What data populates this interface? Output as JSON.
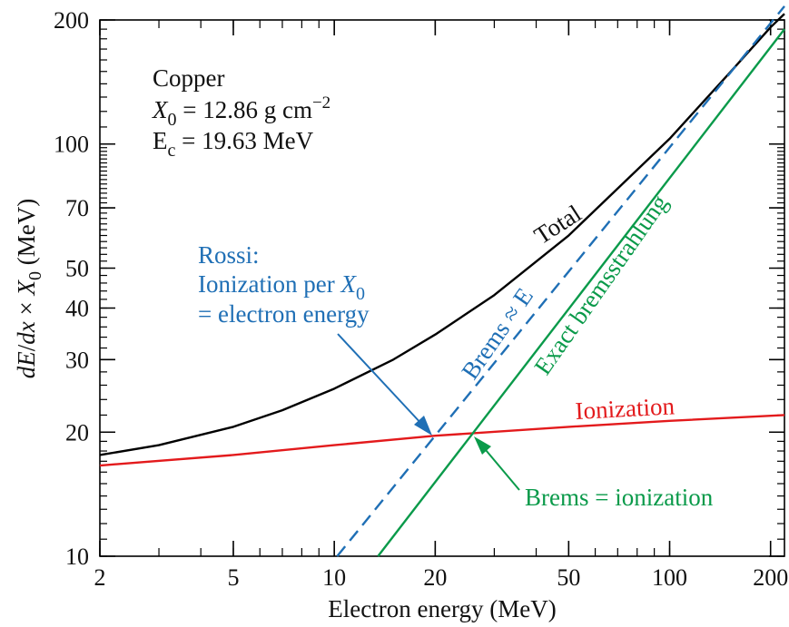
{
  "chart_data": {
    "type": "line",
    "xscale": "log",
    "yscale": "log",
    "xlim": [
      2,
      220
    ],
    "ylim": [
      10,
      200
    ],
    "xlabel": "Electron energy (MeV)",
    "ylabel_parts": {
      "a": "dE",
      "b": "/",
      "c": "dx",
      "d": " × ",
      "e": "X",
      "f": "0",
      "g": " (MeV)"
    },
    "xticks": [
      {
        "v": 2,
        "label": "2"
      },
      {
        "v": 5,
        "label": "5"
      },
      {
        "v": 10,
        "label": "10"
      },
      {
        "v": 20,
        "label": "20"
      },
      {
        "v": 50,
        "label": "50"
      },
      {
        "v": 100,
        "label": "100"
      },
      {
        "v": 200,
        "label": "200"
      }
    ],
    "yticks": [
      {
        "v": 10,
        "label": "10"
      },
      {
        "v": 20,
        "label": "20"
      },
      {
        "v": 30,
        "label": "30"
      },
      {
        "v": 40,
        "label": "40"
      },
      {
        "v": 50,
        "label": "50"
      },
      {
        "v": 70,
        "label": "70"
      },
      {
        "v": 100,
        "label": "100"
      },
      {
        "v": 200,
        "label": "200"
      }
    ],
    "colors": {
      "total": "#000000",
      "ionization": "#e31a1c",
      "brems_approx": "#1f6fb5",
      "exact_brems": "#0a9a4a",
      "axes": "#000000"
    },
    "series": [
      {
        "key": "total",
        "name": "Total",
        "values": [
          [
            2,
            17.6
          ],
          [
            3,
            18.6
          ],
          [
            5,
            20.6
          ],
          [
            7,
            22.6
          ],
          [
            10,
            25.5
          ],
          [
            15,
            30.0
          ],
          [
            20,
            34.5
          ],
          [
            30,
            43.0
          ],
          [
            50,
            60.0
          ],
          [
            70,
            78.0
          ],
          [
            100,
            103.0
          ],
          [
            150,
            148.0
          ],
          [
            200,
            192.0
          ],
          [
            220,
            207.0
          ]
        ]
      },
      {
        "key": "ionization",
        "name": "Ionization",
        "values": [
          [
            2,
            16.6
          ],
          [
            5,
            17.6
          ],
          [
            10,
            18.6
          ],
          [
            20,
            19.6
          ],
          [
            50,
            20.6
          ],
          [
            100,
            21.3
          ],
          [
            220,
            22.0
          ]
        ]
      },
      {
        "key": "brems_approx",
        "name": "Brems ≈ E",
        "dashed": true,
        "values": [
          [
            10.2,
            10.0
          ],
          [
            220,
            216.0
          ]
        ]
      },
      {
        "key": "exact_brems",
        "name": "Exact bremsstrahlung",
        "values": [
          [
            13.5,
            10.0
          ],
          [
            220,
            190.0
          ]
        ]
      }
    ],
    "annotations": {
      "material": "Copper",
      "x0_sym": "X",
      "x0_sub": "0",
      "x0_val": " = 12.86 g cm",
      "x0_exp": "−2",
      "ec_sym": "E",
      "ec_sub": "c",
      "ec_val": " = 19.63 MeV",
      "rossi_line1": "Rossi:",
      "rossi_line2": "Ionization per ",
      "rossi_x": "X",
      "rossi_sub": "0",
      "rossi_line3": "= electron energy",
      "brems_equal": "Brems = ionization",
      "label_total": "Total",
      "label_brems_approx": "Brems ≈ E",
      "label_exact": "Exact bremsstrahlung",
      "label_ionization": "Ionization"
    }
  }
}
